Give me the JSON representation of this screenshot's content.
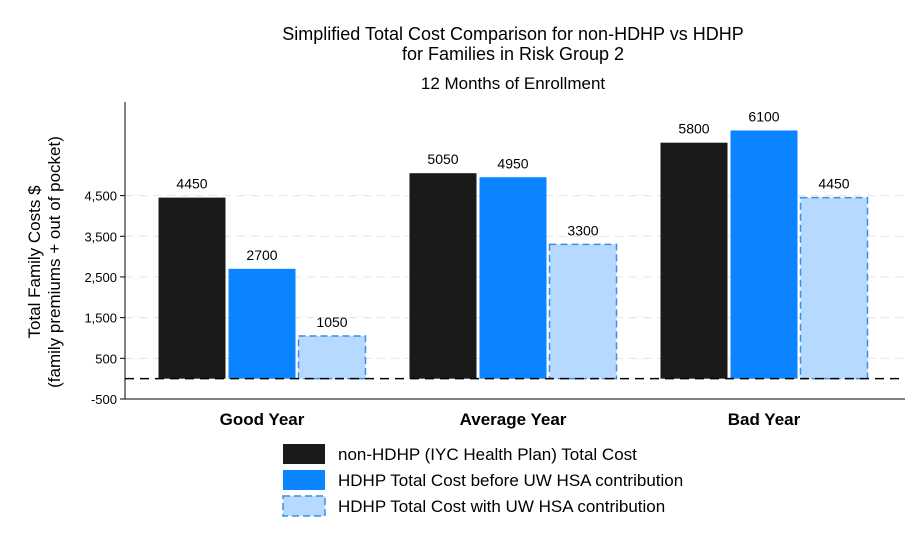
{
  "chart_data": {
    "type": "bar",
    "title_lines": [
      "Simplified Total Cost Comparison for non-HDHP vs HDHP",
      "for Families in Risk Group 2"
    ],
    "subtitle": "12 Months of Enrollment",
    "ylabel_lines": [
      "Total Family Costs $",
      "(family premiums + out of pocket)"
    ],
    "xlabel": "",
    "categories": [
      "Good Year",
      "Average Year",
      "Bad Year"
    ],
    "series": [
      {
        "name": "non-HDHP (IYC Health Plan) Total Cost",
        "values": [
          4450,
          5050,
          5800
        ],
        "color": "#1a1a1a",
        "dashed": false
      },
      {
        "name": "HDHP Total Cost before UW HSA contribution",
        "values": [
          2700,
          4950,
          6100
        ],
        "color": "#0a84ff",
        "dashed": false
      },
      {
        "name": "HDHP Total Cost with UW HSA contribution",
        "values": [
          1050,
          3300,
          4450
        ],
        "color": "#b6d9ff",
        "dashed": true,
        "stroke": "#3d8fe0"
      }
    ],
    "yticks": [
      -500,
      500,
      1500,
      2500,
      3500,
      4500
    ],
    "ytick_labels": [
      "-500",
      "500",
      "1,500",
      "2,500",
      "3,500",
      "4,500"
    ],
    "ylim": [
      -500,
      6800
    ],
    "zero_line": "dashed",
    "grid": "horizontal dashed",
    "legend": "bottom"
  }
}
